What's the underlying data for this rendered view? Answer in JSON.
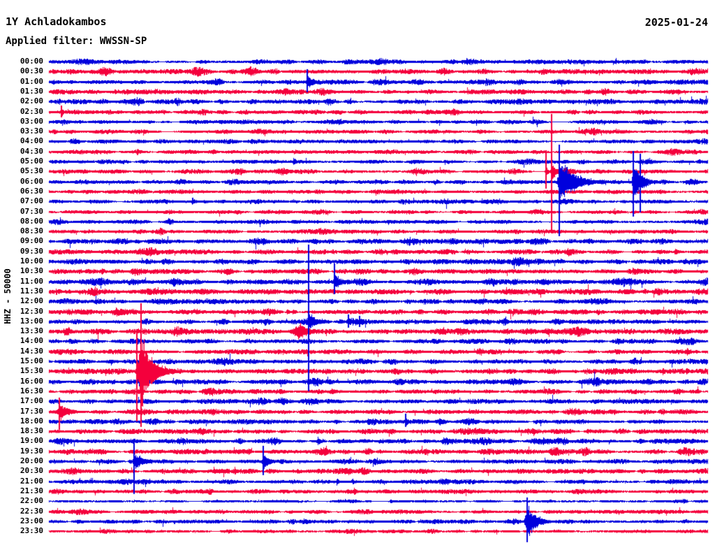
{
  "header": {
    "station": "1Y Achladokambos",
    "filter_label": "Applied filter: WWSSN-SP",
    "date": "2025-01-24"
  },
  "y_axis_label": "HHZ - 50000",
  "colors": {
    "trace_hour": "#0000dd",
    "trace_half": "#f4003c",
    "text": "#000000",
    "background": "#ffffff"
  },
  "chart_data": {
    "type": "helicorder",
    "title": "1Y Achladokambos",
    "applied_filter": "WWSSN-SP",
    "date": "2025-01-24",
    "channel": "HHZ",
    "scale": 50000,
    "minutes_per_row": 30,
    "row_color_rule": "rows starting on the hour are blue, rows starting on the half hour are red",
    "row_labels": [
      "00:00",
      "00:30",
      "01:00",
      "01:30",
      "02:00",
      "02:30",
      "03:00",
      "03:30",
      "04:00",
      "04:30",
      "05:00",
      "05:30",
      "06:00",
      "06:30",
      "07:00",
      "07:30",
      "08:00",
      "08:30",
      "09:00",
      "09:30",
      "10:00",
      "10:30",
      "11:00",
      "11:30",
      "12:00",
      "12:30",
      "13:00",
      "13:30",
      "14:00",
      "14:30",
      "15:00",
      "15:30",
      "16:00",
      "16:30",
      "17:00",
      "17:30",
      "18:00",
      "18:30",
      "19:00",
      "19:30",
      "20:00",
      "20:30",
      "21:00",
      "21:30",
      "22:00",
      "22:30",
      "23:00",
      "23:30"
    ],
    "noise_amplitudes": [
      1.7,
      2.3,
      1.7,
      1.8,
      2.1,
      1.8,
      1.6,
      1.7,
      1.5,
      1.6,
      1.5,
      1.7,
      1.8,
      1.7,
      1.5,
      1.6,
      1.6,
      1.7,
      2.4,
      2.0,
      2.2,
      2.1,
      2.2,
      2.2,
      2.3,
      2.2,
      2.0,
      2.4,
      2.0,
      2.2,
      2.0,
      2.2,
      2.1,
      1.9,
      2.0,
      1.9,
      1.9,
      2.0,
      1.9,
      2.2,
      1.8,
      1.9,
      1.7,
      1.7,
      0.9,
      1.5,
      1.5,
      1.3
    ],
    "events": [
      {
        "row": "00:00",
        "frac": 0.948,
        "amp": 3,
        "rise": 2,
        "fall": 10,
        "tau": 4
      },
      {
        "row": "01:00",
        "frac": 0.392,
        "amp": 10,
        "rise": 4,
        "fall": 35,
        "tau": 9,
        "spike_up": 18,
        "spike_dn": 15
      },
      {
        "row": "01:00",
        "frac": 0.89,
        "amp": 4,
        "rise": 2,
        "fall": 8,
        "tau": 3
      },
      {
        "row": "01:30",
        "frac": 0.119,
        "amp": 4,
        "rise": 2,
        "fall": 12,
        "tau": 5
      },
      {
        "row": "01:30",
        "frac": 0.955,
        "amp": 4,
        "rise": 2,
        "fall": 12,
        "tau": 5
      },
      {
        "row": "02:30",
        "frac": 0.019,
        "amp": 6,
        "rise": 2,
        "fall": 6,
        "tau": 3,
        "spike_up": 9,
        "spike_dn": 8
      },
      {
        "row": "03:30",
        "frac": 0.143,
        "amp": 4,
        "rise": 3,
        "fall": 25,
        "tau": 9
      },
      {
        "row": "05:00",
        "frac": 0.371,
        "amp": 5,
        "rise": 2,
        "fall": 12,
        "tau": 5
      },
      {
        "row": "05:30",
        "frac": 0.755,
        "amp": 8,
        "rise": 2,
        "fall": 5,
        "tau": 3,
        "spike_up": 30,
        "spike_dn": 25
      },
      {
        "row": "05:30",
        "frac": 0.763,
        "amp": 13,
        "rise": 4,
        "fall": 20,
        "tau": 6,
        "spike_up": 82,
        "spike_dn": 86
      },
      {
        "row": "06:00",
        "frac": 0.775,
        "amp": 29,
        "rise": 5,
        "fall": 80,
        "tau": 22,
        "spike_up": 53,
        "spike_dn": 78
      },
      {
        "row": "06:00",
        "frac": 0.888,
        "amp": 25,
        "rise": 4,
        "fall": 45,
        "tau": 12,
        "spike_up": 44,
        "spike_dn": 50
      },
      {
        "row": "06:00",
        "frac": 0.898,
        "amp": 12,
        "rise": 2,
        "fall": 5,
        "tau": 3,
        "spike_up": 40,
        "spike_dn": 44
      },
      {
        "row": "07:00",
        "frac": 0.217,
        "amp": 5,
        "rise": 3,
        "fall": 15,
        "tau": 6
      },
      {
        "row": "07:30",
        "frac": 0.625,
        "amp": 3,
        "rise": 3,
        "fall": 20,
        "tau": 8
      },
      {
        "row": "07:30",
        "frac": 0.747,
        "amp": 3,
        "rise": 2,
        "fall": 12,
        "tau": 5
      },
      {
        "row": "09:30",
        "frac": 0.951,
        "amp": 4,
        "rise": 4,
        "fall": 22,
        "tau": 8
      },
      {
        "row": "11:00",
        "frac": 0.434,
        "amp": 11,
        "rise": 4,
        "fall": 28,
        "tau": 8,
        "spike_up": 26,
        "spike_dn": 18
      },
      {
        "row": "11:30",
        "frac": 0.085,
        "amp": 4,
        "rise": 3,
        "fall": 12,
        "tau": 5
      },
      {
        "row": "11:30",
        "frac": 0.161,
        "amp": 4,
        "rise": 2,
        "fall": 10,
        "tau": 4
      },
      {
        "row": "12:30",
        "frac": 0.362,
        "amp": 4,
        "rise": 3,
        "fall": 10,
        "tau": 4
      },
      {
        "row": "12:30",
        "frac": 0.919,
        "amp": 3,
        "rise": 6,
        "fall": 45,
        "tau": 20
      },
      {
        "row": "13:30",
        "frac": 0.381,
        "amp": 11,
        "rise": 24,
        "fall": 40,
        "tau": 12
      },
      {
        "row": "13:00",
        "frac": 0.394,
        "amp": 13,
        "rise": 3,
        "fall": 32,
        "tau": 10,
        "spike_up": 110,
        "spike_dn": 100
      },
      {
        "row": "13:00",
        "frac": 0.455,
        "amp": 6,
        "rise": 2,
        "fall": 6,
        "tau": 3,
        "spike_up": 10,
        "spike_dn": 9
      },
      {
        "row": "13:00",
        "frac": 0.472,
        "amp": 5,
        "rise": 2,
        "fall": 6,
        "tau": 3,
        "spike_up": 8,
        "spike_dn": 8
      },
      {
        "row": "14:30",
        "frac": 0.969,
        "amp": 6,
        "rise": 3,
        "fall": 10,
        "tau": 4
      },
      {
        "row": "15:30",
        "frac": 0.134,
        "amp": 20,
        "rise": 3,
        "fall": 6,
        "tau": 3,
        "spike_up": 60,
        "spike_dn": 72
      },
      {
        "row": "15:30",
        "frac": 0.14,
        "amp": 46,
        "rise": 11,
        "fall": 60,
        "tau": 16,
        "spike_up": 97,
        "spike_dn": 80
      },
      {
        "row": "15:30",
        "frac": 0.932,
        "amp": 5,
        "rise": 3,
        "fall": 10,
        "tau": 4
      },
      {
        "row": "16:00",
        "frac": 0.847,
        "amp": 4,
        "rise": 3,
        "fall": 12,
        "tau": 5
      },
      {
        "row": "16:30",
        "frac": 0.429,
        "amp": 5,
        "rise": 2,
        "fall": 12,
        "tau": 5
      },
      {
        "row": "17:30",
        "frac": 0.016,
        "amp": 12,
        "rise": 6,
        "fall": 45,
        "tau": 12,
        "spike_up": 20,
        "spike_dn": 26
      },
      {
        "row": "18:00",
        "frac": 0.485,
        "amp": 5,
        "rise": 4,
        "fall": 18,
        "tau": 7
      },
      {
        "row": "18:00",
        "frac": 0.542,
        "amp": 7,
        "rise": 2,
        "fall": 8,
        "tau": 4,
        "spike_up": 11,
        "spike_dn": 8
      },
      {
        "row": "19:00",
        "frac": 0.408,
        "amp": 6,
        "rise": 3,
        "fall": 10,
        "tau": 4
      },
      {
        "row": "19:00",
        "frac": 0.754,
        "amp": 4,
        "rise": 3,
        "fall": 15,
        "tau": 6
      },
      {
        "row": "20:00",
        "frac": 0.129,
        "amp": 12,
        "rise": 5,
        "fall": 40,
        "tau": 12,
        "spike_up": 27,
        "spike_dn": 47
      },
      {
        "row": "20:00",
        "frac": 0.326,
        "amp": 11,
        "rise": 4,
        "fall": 30,
        "tau": 9,
        "spike_up": 22,
        "spike_dn": 20
      },
      {
        "row": "20:30",
        "frac": 0.282,
        "amp": 6,
        "rise": 2,
        "fall": 6,
        "tau": 3
      },
      {
        "row": "21:00",
        "frac": 0.437,
        "amp": 5,
        "rise": 2,
        "fall": 8,
        "tau": 4
      },
      {
        "row": "21:00",
        "frac": 0.461,
        "amp": 4,
        "rise": 2,
        "fall": 10,
        "tau": 4
      },
      {
        "row": "21:30",
        "frac": 0.463,
        "amp": 7,
        "rise": 2,
        "fall": 6,
        "tau": 3
      },
      {
        "row": "21:30",
        "frac": 0.512,
        "amp": 3,
        "rise": 4,
        "fall": 18,
        "tau": 8
      },
      {
        "row": "22:00",
        "frac": 0.519,
        "amp": 2,
        "rise": 3,
        "fall": 25,
        "tau": 10
      },
      {
        "row": "23:00",
        "frac": 0.726,
        "amp": 21,
        "rise": 7,
        "fall": 48,
        "tau": 13,
        "spike_up": 34,
        "spike_dn": 30
      }
    ]
  }
}
